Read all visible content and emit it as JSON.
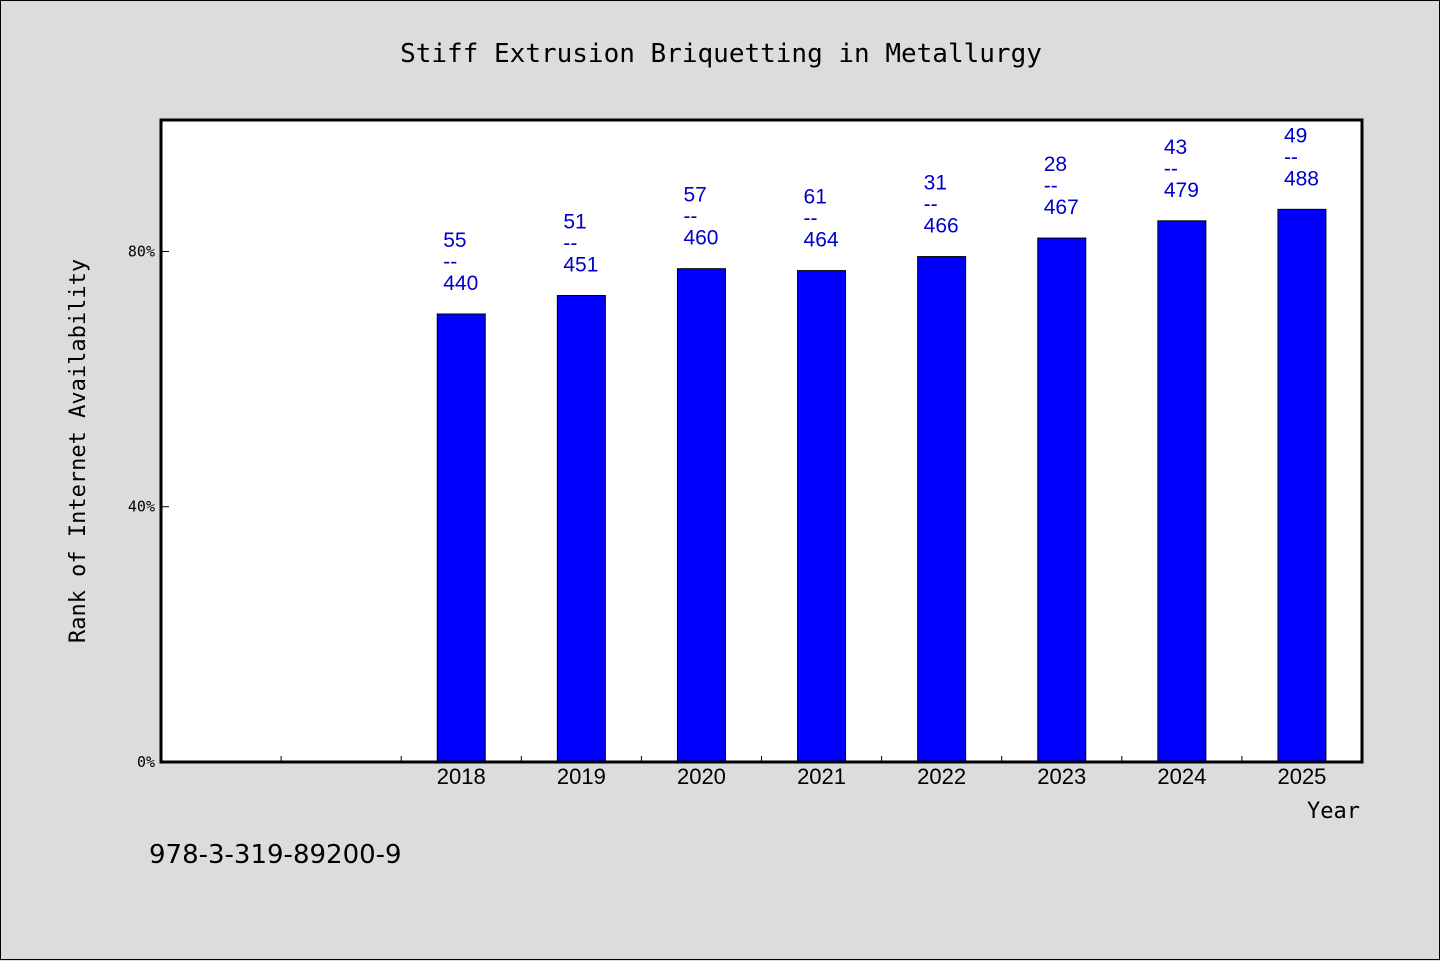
{
  "chart_data": {
    "type": "bar",
    "title": "Stiff Extrusion Briquetting in Metallurgy",
    "xlabel": "Year",
    "ylabel": "Rank of Internet Availability",
    "categories": [
      "2018",
      "2019",
      "2020",
      "2021",
      "2022",
      "2023",
      "2024",
      "2025"
    ],
    "values": [
      70.2,
      73.1,
      77.3,
      77.0,
      79.2,
      82.1,
      84.8,
      86.6
    ],
    "value_labels": [
      [
        "55",
        "--",
        "440"
      ],
      [
        "51",
        "--",
        "451"
      ],
      [
        "57",
        "--",
        "460"
      ],
      [
        "61",
        "--",
        "464"
      ],
      [
        "31",
        "--",
        "466"
      ],
      [
        "28",
        "--",
        "467"
      ],
      [
        "43",
        "--",
        "479"
      ],
      [
        "49",
        "--",
        "488"
      ]
    ],
    "yticks": [
      {
        "value": 0,
        "label": "0%"
      },
      {
        "value": 40,
        "label": "40%"
      },
      {
        "value": 80,
        "label": "80%"
      }
    ],
    "ylim": [
      0,
      100.6
    ],
    "empty_leading_slots": 2,
    "grid": false,
    "bar_color": "#0000ff",
    "label_color": "#0000cc",
    "plot_background": "#ffffff",
    "page_background": "#dcdcdc"
  },
  "footer": {
    "identifier": "978-3-319-89200-9"
  }
}
